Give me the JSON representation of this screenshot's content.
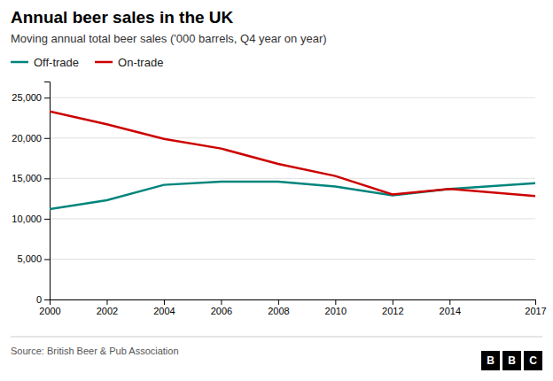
{
  "chart_data": {
    "type": "line",
    "title": "Annual beer sales in the UK",
    "subtitle": "Moving annual total beer sales ('000 barrels, Q4 year on year)",
    "source": "Source: British Beer & Pub Association",
    "annotations": [
      "B",
      "B",
      "C"
    ],
    "x": [
      2000,
      2002,
      2004,
      2006,
      2008,
      2010,
      2012,
      2014,
      2017
    ],
    "series": [
      {
        "name": "Off-trade",
        "color": "#00857c",
        "values": [
          11200,
          12300,
          14200,
          14600,
          14600,
          14000,
          12900,
          13700,
          14400
        ]
      },
      {
        "name": "On-trade",
        "color": "#cc0000",
        "values": [
          23300,
          21700,
          19900,
          18700,
          16800,
          15300,
          13000,
          13700,
          12800
        ]
      }
    ],
    "xlim": [
      2000,
      2017
    ],
    "xticks": [
      2000,
      2002,
      2004,
      2006,
      2008,
      2010,
      2012,
      2014,
      2017
    ],
    "ylim": [
      0,
      27000
    ],
    "yticks": [
      0,
      {
        "value": 5000,
        "label": "5,000"
      },
      {
        "value": 10000,
        "label": "10,000"
      },
      {
        "value": 15000,
        "label": "15,000"
      },
      {
        "value": 20000,
        "label": "20,000"
      },
      {
        "value": 25000,
        "label": "25,000"
      }
    ],
    "grid": true,
    "legend": "top-left"
  }
}
